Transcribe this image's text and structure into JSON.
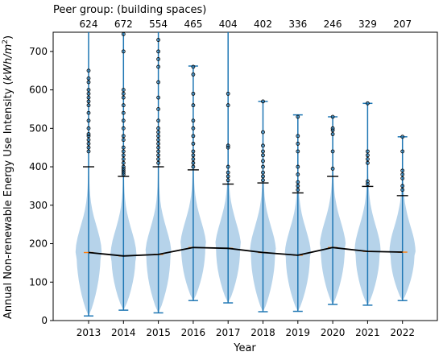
{
  "chart_data": {
    "type": "violin",
    "header": "Peer group:  (building spaces)",
    "xlabel": "Year",
    "ylabel": "Annual Non-renewable Energy Use Intensity (kWh/m²)",
    "ylabel_main": "Annual Non-renewable Energy Use Intensity (",
    "ylabel_unit_italic": "kWh/m",
    "ylabel_unit_sup": "2",
    "ylabel_close": ")",
    "ylim": [
      0,
      750
    ],
    "yticks": [
      "0",
      "100",
      "200",
      "300",
      "400",
      "500",
      "600",
      "700"
    ],
    "grid": false,
    "colors": {
      "violin": "#a9cbe6",
      "whisker": "#1f77b4",
      "median_line": "#000000",
      "median_tick": "#ff7f0e",
      "outlier": "#1f77b4"
    },
    "groups": [
      {
        "year": "2013",
        "count": "624",
        "min": 12,
        "q_high": 400,
        "max": 750,
        "median": 177,
        "outliers": [
          440,
          450,
          460,
          470,
          480,
          485,
          500,
          520,
          540,
          560,
          570,
          580,
          590,
          600,
          620,
          630,
          650
        ]
      },
      {
        "year": "2014",
        "count": "672",
        "min": 27,
        "q_high": 375,
        "max": 750,
        "median": 168,
        "outliers": [
          380,
          385,
          390,
          395,
          400,
          410,
          420,
          430,
          440,
          450,
          470,
          480,
          500,
          520,
          540,
          560,
          580,
          590,
          600,
          700,
          745
        ]
      },
      {
        "year": "2015",
        "count": "554",
        "min": 20,
        "q_high": 400,
        "max": 750,
        "median": 172,
        "outliers": [
          410,
          420,
          430,
          440,
          450,
          460,
          470,
          480,
          490,
          500,
          520,
          550,
          580,
          620,
          660,
          680,
          700,
          730
        ]
      },
      {
        "year": "2016",
        "count": "465",
        "min": 52,
        "q_high": 392,
        "max": 662,
        "median": 190,
        "outliers": [
          400,
          410,
          420,
          430,
          440,
          460,
          480,
          500,
          520,
          560,
          590,
          640,
          660
        ]
      },
      {
        "year": "2017",
        "count": "404",
        "min": 46,
        "q_high": 355,
        "max": 750,
        "median": 188,
        "outliers": [
          365,
          375,
          385,
          400,
          450,
          455,
          560,
          590
        ]
      },
      {
        "year": "2018",
        "count": "402",
        "min": 23,
        "q_high": 358,
        "max": 570,
        "median": 177,
        "outliers": [
          365,
          375,
          385,
          400,
          415,
          430,
          440,
          455,
          490,
          570
        ]
      },
      {
        "year": "2019",
        "count": "336",
        "min": 24,
        "q_high": 332,
        "max": 535,
        "median": 170,
        "outliers": [
          340,
          350,
          360,
          380,
          400,
          440,
          460,
          480,
          530
        ]
      },
      {
        "year": "2020",
        "count": "246",
        "min": 42,
        "q_high": 375,
        "max": 530,
        "median": 190,
        "outliers": [
          395,
          440,
          485,
          495,
          500,
          530
        ]
      },
      {
        "year": "2021",
        "count": "329",
        "min": 40,
        "q_high": 349,
        "max": 565,
        "median": 180,
        "outliers": [
          355,
          362,
          410,
          420,
          430,
          440,
          565
        ]
      },
      {
        "year": "2022",
        "count": "207",
        "min": 52,
        "q_high": 325,
        "max": 478,
        "median": 178,
        "outliers": [
          340,
          350,
          370,
          380,
          390,
          440,
          478
        ]
      }
    ]
  }
}
